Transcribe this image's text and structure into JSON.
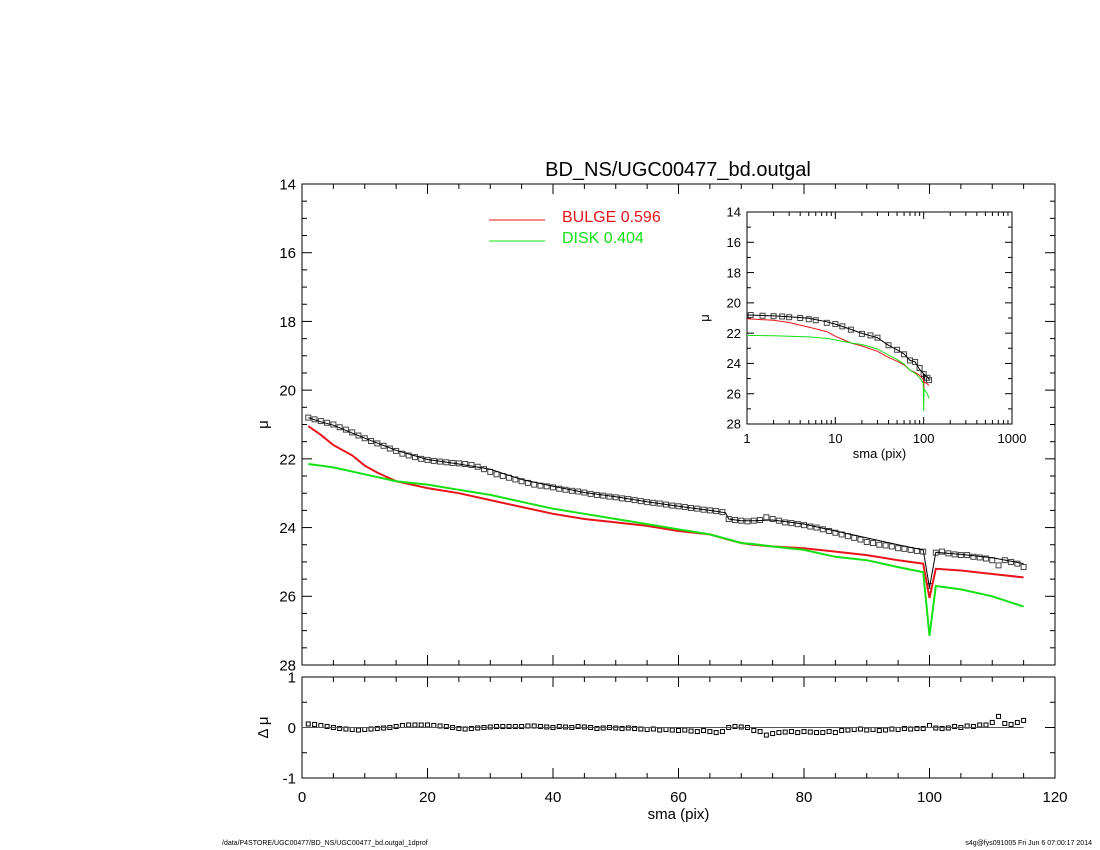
{
  "title": "BD_NS/UGC00477_bd.outgal",
  "footer_left": "/data/P4STORE/UGC00477/BD_NS/UGC00477_bd.outgal_1dprof",
  "footer_right": "s4g@fys091005  Fri Jun  6 07:00:17 2014",
  "colors": {
    "bulge": "#e8141a",
    "disk": "#14e014",
    "total": "#000000",
    "data": "#444444"
  },
  "legend": [
    {
      "label": "BULGE  0.596",
      "color": "#e8141a"
    },
    {
      "label": "DISK  0.404",
      "color": "#14e014"
    }
  ],
  "chart_data": [
    {
      "id": "main",
      "type": "line",
      "xlabel": "",
      "ylabel": "μ",
      "xlim": [
        0,
        120
      ],
      "ylim": [
        28,
        14
      ],
      "y_inverted": true,
      "yticks": [
        "14",
        "16",
        "18",
        "20",
        "22",
        "24",
        "26",
        "28"
      ],
      "series": [
        {
          "name": "data",
          "style": "square-markers",
          "x": [
            1,
            2,
            3,
            4,
            5,
            6,
            7,
            8,
            9,
            10,
            11,
            12,
            13,
            14,
            15,
            16,
            17,
            18,
            19,
            20,
            21,
            22,
            23,
            24,
            25,
            26,
            27,
            28,
            29,
            30,
            31,
            32,
            33,
            34,
            35,
            36,
            37,
            38,
            39,
            40,
            41,
            42,
            43,
            44,
            45,
            46,
            47,
            48,
            49,
            50,
            51,
            52,
            53,
            54,
            55,
            56,
            57,
            58,
            59,
            60,
            61,
            62,
            63,
            64,
            65,
            66,
            67,
            68,
            69,
            70,
            71,
            72,
            73,
            74,
            75,
            76,
            77,
            78,
            79,
            80,
            81,
            82,
            83,
            84,
            85,
            86,
            87,
            88,
            89,
            90,
            91,
            92,
            93,
            94,
            95,
            96,
            97,
            98,
            99,
            100,
            101,
            102,
            103,
            104,
            105,
            106,
            107,
            108,
            109,
            110,
            111,
            112,
            113,
            114,
            115
          ],
          "y": [
            20.8,
            20.85,
            20.9,
            20.95,
            21.0,
            21.08,
            21.15,
            21.23,
            21.32,
            21.4,
            21.48,
            21.55,
            21.62,
            21.7,
            21.77,
            21.85,
            21.9,
            21.95,
            22.0,
            22.03,
            22.06,
            22.08,
            22.1,
            22.12,
            22.13,
            22.15,
            22.18,
            22.23,
            22.3,
            22.38,
            22.45,
            22.5,
            22.55,
            22.6,
            22.65,
            22.7,
            22.75,
            22.78,
            22.8,
            22.83,
            22.87,
            22.9,
            22.93,
            22.95,
            22.98,
            23.02,
            23.05,
            23.07,
            23.1,
            23.12,
            23.15,
            23.17,
            23.2,
            23.23,
            23.26,
            23.28,
            23.3,
            23.33,
            23.36,
            23.38,
            23.4,
            23.43,
            23.45,
            23.48,
            23.5,
            23.52,
            23.55,
            23.75,
            23.78,
            23.8,
            23.82,
            23.8,
            23.78,
            23.7,
            23.75,
            23.8,
            23.85,
            23.87,
            23.9,
            23.93,
            23.97,
            24.0,
            24.05,
            24.1,
            24.15,
            24.2,
            24.25,
            24.3,
            24.35,
            24.42,
            24.45,
            24.5,
            24.52,
            24.55,
            24.6,
            24.62,
            24.65,
            24.68,
            24.7,
            25.7,
            24.73,
            24.7,
            24.75,
            24.78,
            24.8,
            24.8,
            24.85,
            24.87,
            24.9,
            24.95,
            25.1,
            24.95,
            25.0,
            25.05,
            25.15
          ]
        },
        {
          "name": "total",
          "style": "thin-line",
          "x": [
            1,
            3,
            5,
            8,
            10,
            15,
            20,
            25,
            30,
            35,
            40,
            45,
            50,
            55,
            60,
            65,
            67.5,
            68,
            70,
            72,
            75,
            78,
            80,
            85,
            90,
            95,
            97,
            99,
            100,
            101,
            105,
            110,
            115
          ],
          "y": [
            20.8,
            20.92,
            21.02,
            21.25,
            21.4,
            21.75,
            22.02,
            22.15,
            22.3,
            22.6,
            22.8,
            22.98,
            23.1,
            23.25,
            23.38,
            23.5,
            23.57,
            23.75,
            23.8,
            23.8,
            23.78,
            23.85,
            23.9,
            24.1,
            24.3,
            24.5,
            24.58,
            24.65,
            25.75,
            24.72,
            24.78,
            24.88,
            25.05
          ]
        },
        {
          "name": "bulge",
          "style": "line",
          "color": "#e8141a",
          "x": [
            1,
            3,
            5,
            8,
            10,
            12,
            15,
            20,
            25,
            30,
            35,
            40,
            45,
            50,
            55,
            60,
            65,
            67.5,
            70,
            72,
            75,
            80,
            85,
            90,
            95,
            99,
            100,
            101,
            105,
            110,
            115
          ],
          "y": [
            21.05,
            21.3,
            21.6,
            21.9,
            22.2,
            22.4,
            22.65,
            22.85,
            23.0,
            23.2,
            23.4,
            23.6,
            23.75,
            23.85,
            23.95,
            24.1,
            24.2,
            24.33,
            24.45,
            24.5,
            24.55,
            24.6,
            24.7,
            24.8,
            24.95,
            25.05,
            26.05,
            25.2,
            25.25,
            25.35,
            25.45
          ]
        },
        {
          "name": "disk",
          "style": "line",
          "color": "#14e014",
          "x": [
            1,
            5,
            10,
            15,
            20,
            25,
            30,
            35,
            40,
            45,
            50,
            55,
            60,
            65,
            67.5,
            70,
            72,
            75,
            80,
            85,
            90,
            95,
            99,
            100,
            101,
            105,
            110,
            115
          ],
          "y": [
            22.15,
            22.25,
            22.45,
            22.65,
            22.75,
            22.9,
            23.05,
            23.25,
            23.45,
            23.6,
            23.75,
            23.9,
            24.05,
            24.2,
            24.32,
            24.45,
            24.48,
            24.55,
            24.65,
            24.85,
            24.95,
            25.15,
            25.3,
            27.15,
            25.7,
            25.8,
            26.0,
            26.3
          ]
        }
      ]
    },
    {
      "id": "residual",
      "type": "scatter",
      "xlabel": "sma (pix)",
      "ylabel": "Δ μ",
      "xlim": [
        0,
        120
      ],
      "ylim": [
        -1,
        1
      ],
      "xticks": [
        "0",
        "20",
        "40",
        "60",
        "80",
        "100",
        "120"
      ],
      "yticks": [
        "1",
        "0",
        "-1"
      ],
      "series": [
        {
          "name": "residual",
          "x": [
            1,
            2,
            3,
            4,
            5,
            6,
            7,
            8,
            9,
            10,
            11,
            12,
            13,
            14,
            15,
            16,
            17,
            18,
            19,
            20,
            21,
            22,
            23,
            24,
            25,
            26,
            27,
            28,
            29,
            30,
            31,
            32,
            33,
            34,
            35,
            36,
            37,
            38,
            39,
            40,
            41,
            42,
            43,
            44,
            45,
            46,
            47,
            48,
            49,
            50,
            51,
            52,
            53,
            54,
            55,
            56,
            57,
            58,
            59,
            60,
            61,
            62,
            63,
            64,
            65,
            66,
            67,
            68,
            69,
            70,
            71,
            72,
            73,
            74,
            75,
            76,
            77,
            78,
            79,
            80,
            81,
            82,
            83,
            84,
            85,
            86,
            87,
            88,
            89,
            90,
            91,
            92,
            93,
            94,
            95,
            96,
            97,
            98,
            99,
            100,
            101,
            102,
            103,
            104,
            105,
            106,
            107,
            108,
            109,
            110,
            111,
            112,
            113,
            114,
            115
          ],
          "y": [
            0.07,
            0.06,
            0.04,
            0.02,
            0.0,
            -0.02,
            -0.03,
            -0.04,
            -0.05,
            -0.04,
            -0.03,
            -0.02,
            -0.01,
            0.0,
            0.02,
            0.04,
            0.05,
            0.05,
            0.05,
            0.05,
            0.04,
            0.03,
            0.02,
            0.0,
            -0.02,
            -0.03,
            -0.02,
            -0.01,
            0.0,
            0.01,
            0.02,
            0.02,
            0.02,
            0.02,
            0.02,
            0.03,
            0.03,
            0.02,
            0.01,
            0.0,
            0.02,
            0.01,
            0.0,
            0.02,
            0.01,
            0.0,
            -0.02,
            -0.01,
            0.0,
            -0.01,
            -0.02,
            -0.01,
            -0.02,
            -0.03,
            -0.04,
            -0.03,
            -0.05,
            -0.04,
            -0.05,
            -0.06,
            -0.05,
            -0.07,
            -0.08,
            -0.06,
            -0.08,
            -0.1,
            -0.08,
            0.0,
            0.02,
            0.01,
            0.0,
            -0.06,
            -0.08,
            -0.15,
            -0.12,
            -0.1,
            -0.09,
            -0.08,
            -0.1,
            -0.08,
            -0.09,
            -0.1,
            -0.1,
            -0.08,
            -0.1,
            -0.06,
            -0.05,
            -0.04,
            -0.03,
            -0.05,
            -0.04,
            -0.06,
            -0.05,
            -0.03,
            -0.04,
            -0.02,
            -0.03,
            -0.02,
            -0.02,
            0.04,
            -0.01,
            -0.02,
            -0.01,
            0.02,
            0.0,
            0.03,
            0.02,
            0.05,
            0.05,
            0.1,
            0.22,
            0.08,
            0.06,
            0.1,
            0.14
          ]
        }
      ]
    },
    {
      "id": "inset",
      "type": "line",
      "xlabel": "sma (pix)",
      "ylabel": "μ",
      "x_scale": "log",
      "xlim": [
        1,
        1000
      ],
      "ylim": [
        28,
        14
      ],
      "y_inverted": true,
      "xticks": [
        "1",
        "10",
        "100",
        "1000"
      ],
      "yticks": [
        "14",
        "16",
        "18",
        "20",
        "22",
        "24",
        "26",
        "28"
      ],
      "series": [
        {
          "name": "data",
          "style": "square-markers",
          "x": [
            1.1,
            1.5,
            2,
            2.5,
            3,
            4,
            5,
            6,
            8,
            10,
            12,
            15,
            20,
            25,
            30,
            40,
            50,
            60,
            70,
            80,
            90,
            100,
            110,
            115
          ],
          "y": [
            20.8,
            20.85,
            20.88,
            20.9,
            20.95,
            21.0,
            21.08,
            21.15,
            21.32,
            21.4,
            21.55,
            21.77,
            22.05,
            22.15,
            22.3,
            22.8,
            23.1,
            23.4,
            23.8,
            23.9,
            24.3,
            24.7,
            24.95,
            25.1
          ]
        },
        {
          "name": "total",
          "style": "thin-line",
          "x": [
            1,
            2,
            3,
            5,
            8,
            10,
            15,
            20,
            30,
            40,
            50,
            60,
            70,
            80,
            90,
            99,
            100,
            101,
            110,
            115
          ],
          "y": [
            20.8,
            20.86,
            20.92,
            21.02,
            21.25,
            21.4,
            21.75,
            22.02,
            22.3,
            22.8,
            23.1,
            23.38,
            23.8,
            23.9,
            24.4,
            24.65,
            25.75,
            24.72,
            24.88,
            25.05
          ]
        },
        {
          "name": "bulge",
          "style": "line",
          "color": "#e8141a",
          "x": [
            1,
            2,
            3,
            5,
            8,
            10,
            15,
            20,
            30,
            40,
            50,
            60,
            70,
            80,
            90,
            99,
            100,
            101,
            110,
            115
          ],
          "y": [
            21.05,
            21.15,
            21.3,
            21.6,
            21.9,
            22.2,
            22.65,
            22.85,
            23.2,
            23.6,
            23.85,
            24.1,
            24.45,
            24.6,
            24.8,
            25.05,
            26.05,
            25.2,
            25.35,
            25.45
          ]
        },
        {
          "name": "disk",
          "style": "line",
          "color": "#14e014",
          "x": [
            1,
            2,
            3,
            5,
            8,
            10,
            15,
            20,
            30,
            40,
            50,
            60,
            70,
            80,
            90,
            99,
            100,
            101,
            110,
            115
          ],
          "y": [
            22.15,
            22.17,
            22.2,
            22.25,
            22.35,
            22.45,
            22.65,
            22.75,
            23.05,
            23.45,
            23.75,
            24.05,
            24.45,
            24.65,
            24.95,
            25.3,
            27.15,
            25.7,
            26.0,
            26.3
          ]
        }
      ]
    }
  ]
}
